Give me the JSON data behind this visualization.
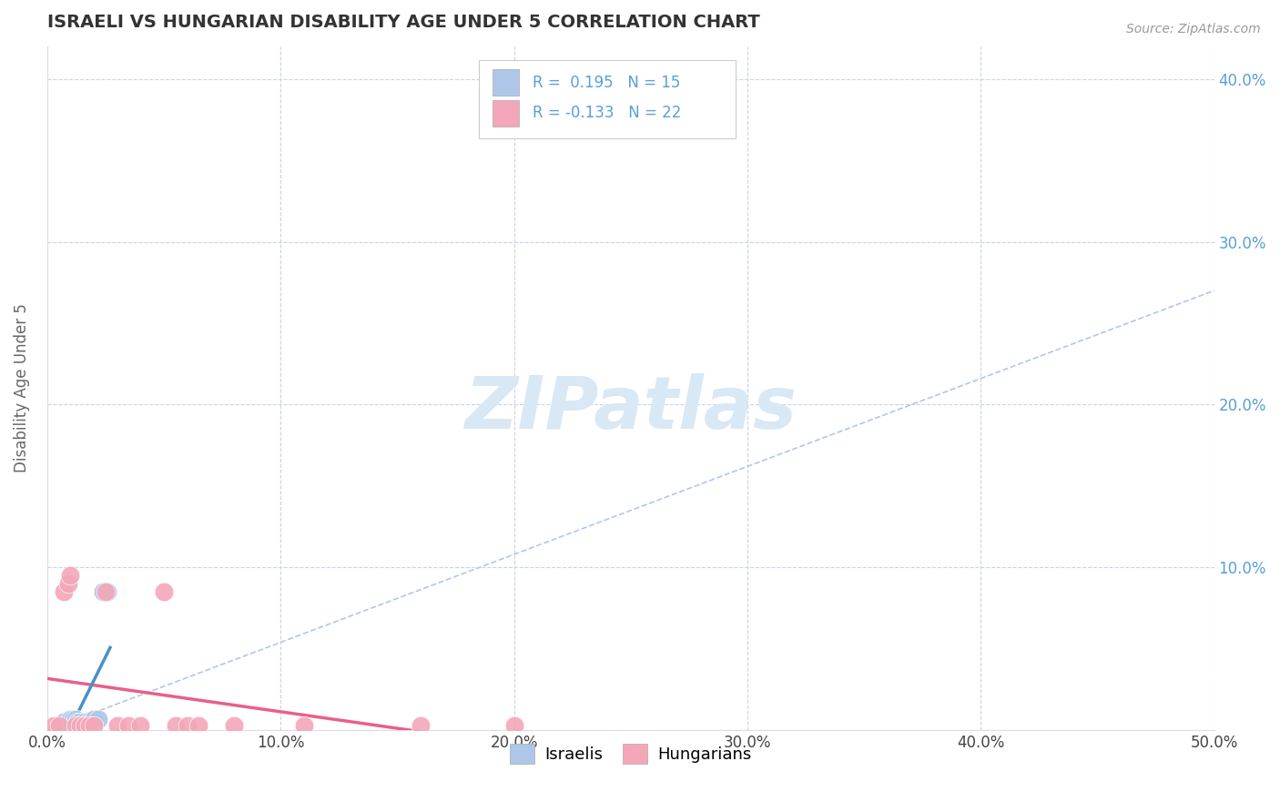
{
  "title": "ISRAELI VS HUNGARIAN DISABILITY AGE UNDER 5 CORRELATION CHART",
  "source": "Source: ZipAtlas.com",
  "ylabel": "Disability Age Under 5",
  "xlim": [
    0.0,
    0.5
  ],
  "ylim": [
    0.0,
    0.42
  ],
  "xticks": [
    0.0,
    0.1,
    0.2,
    0.3,
    0.4,
    0.5
  ],
  "yticks": [
    0.0,
    0.1,
    0.2,
    0.3,
    0.4
  ],
  "xtick_labels": [
    "0.0%",
    "10.0%",
    "20.0%",
    "30.0%",
    "40.0%",
    "50.0%"
  ],
  "ytick_labels": [
    "",
    "10.0%",
    "20.0%",
    "30.0%",
    "40.0%"
  ],
  "israeli_x": [
    0.005,
    0.007,
    0.009,
    0.01,
    0.011,
    0.012,
    0.013,
    0.014,
    0.016,
    0.018,
    0.019,
    0.02,
    0.022,
    0.024,
    0.026
  ],
  "israeli_y": [
    0.003,
    0.005,
    0.005,
    0.007,
    0.007,
    0.007,
    0.005,
    0.005,
    0.005,
    0.006,
    0.005,
    0.007,
    0.007,
    0.085,
    0.085
  ],
  "hungarian_x": [
    0.003,
    0.005,
    0.007,
    0.009,
    0.01,
    0.012,
    0.014,
    0.016,
    0.018,
    0.02,
    0.025,
    0.03,
    0.035,
    0.04,
    0.05,
    0.055,
    0.06,
    0.065,
    0.08,
    0.11,
    0.16,
    0.2
  ],
  "hungarian_y": [
    0.003,
    0.003,
    0.085,
    0.09,
    0.095,
    0.003,
    0.003,
    0.003,
    0.003,
    0.003,
    0.085,
    0.003,
    0.003,
    0.003,
    0.085,
    0.003,
    0.003,
    0.003,
    0.003,
    0.003,
    0.003,
    0.003
  ],
  "israeli_color": "#aec6e8",
  "hungarian_color": "#f4a7b9",
  "israeli_R": 0.195,
  "israeli_N": 15,
  "hungarian_R": -0.133,
  "hungarian_N": 22,
  "trend_israeli_color": "#4a90c4",
  "trend_hungarian_color": "#e8608a",
  "dashed_line_color": "#b0c8e8",
  "watermark_text": "ZIPatlas",
  "watermark_color": "#d8e8f5",
  "background_color": "#ffffff",
  "grid_color": "#c8d4e8",
  "title_color": "#333333",
  "axis_label_color": "#666666",
  "tick_color_right": "#5a9fd4",
  "legend_R_color": "#5a9fd4",
  "legend_box_edge": "#cccccc"
}
